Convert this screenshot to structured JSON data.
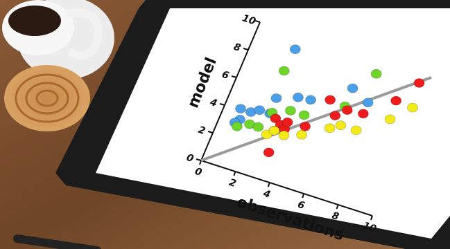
{
  "chart_data": {
    "type": "scatter",
    "xlabel": "observations",
    "ylabel": "model",
    "xlim": [
      0,
      10
    ],
    "ylim": [
      0,
      10
    ],
    "xticks": [
      0,
      2,
      4,
      6,
      8,
      10
    ],
    "yticks": [
      0,
      2,
      4,
      6,
      8,
      10
    ],
    "series": [
      {
        "color": "#4a9fe8",
        "x": [
          2.4,
          2.5,
          3.6,
          4.3,
          6.2,
          7.3,
          0.9,
          1.5,
          1.9,
          1.1,
          0.9,
          2.5
        ],
        "y": [
          9.0,
          5.5,
          6.0,
          6.1,
          7.7,
          7.1,
          4.1,
          4.1,
          4.4,
          3.4,
          3.1,
          4.4
        ]
      },
      {
        "color": "#6ed629",
        "x": [
          2.3,
          7.1,
          2.6,
          3.5,
          4.3,
          1.1,
          1.7,
          2.2,
          6.2
        ],
        "y": [
          7.4,
          9.1,
          4.5,
          5.0,
          5.0,
          2.9,
          3.3,
          3.3,
          6.4
        ]
      },
      {
        "color": "#ee1c1c",
        "x": [
          3.3,
          2.9,
          3.3,
          3.1,
          3.6,
          3.6,
          4.6,
          5.3,
          6.4,
          7.3,
          8.7,
          9.5,
          5.9
        ],
        "y": [
          1.9,
          4.2,
          3.9,
          3.4,
          3.7,
          4.2,
          4.3,
          6.5,
          6.2,
          6.3,
          7.8,
          9.4,
          5.6
        ]
      },
      {
        "color": "#f4ea1a",
        "x": [
          2.8,
          3.7,
          4.6,
          5.9,
          6.4,
          7.3,
          8.8,
          9.7,
          3.1
        ],
        "y": [
          3.0,
          3.3,
          3.7,
          4.7,
          5.1,
          5.1,
          6.5,
          7.7,
          3.4
        ]
      }
    ]
  }
}
